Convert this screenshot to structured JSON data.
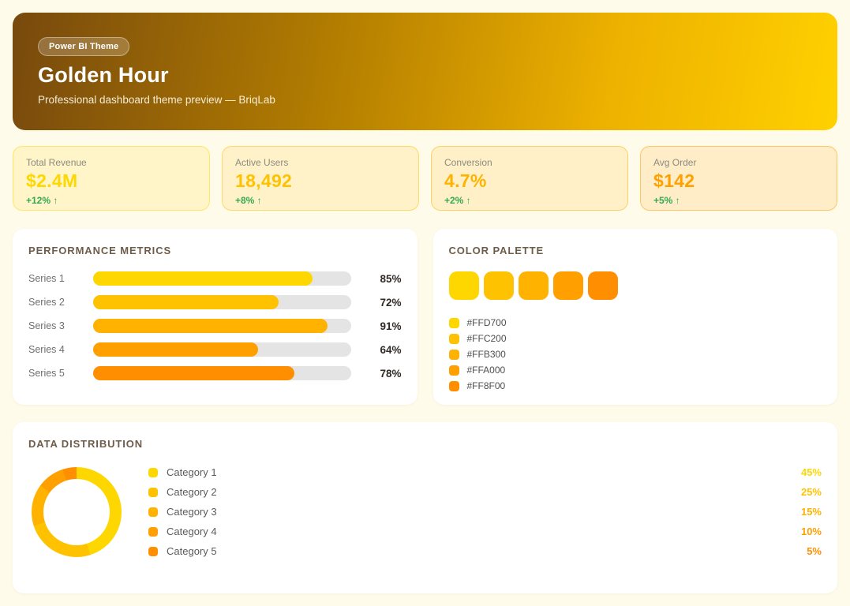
{
  "theme": {
    "page_background": "#FFFBEB",
    "panel_background": "#FFFFFF",
    "panel_title_color": "#6E5C49",
    "positive_color": "#34A853",
    "bar_track_color": "#E4E4E4",
    "header_gradient": [
      "#77490D",
      "#B57F00",
      "#EDB100",
      "#FFD100"
    ]
  },
  "header": {
    "badge": "Power BI Theme",
    "title": "Golden Hour",
    "subtitle": "Professional dashboard theme preview — BriqLab"
  },
  "stat_cards": [
    {
      "label": "Total Revenue",
      "value": "$2.4M",
      "change": "+12% ↑",
      "accent": "#FFD700"
    },
    {
      "label": "Active Users",
      "value": "18,492",
      "change": "+8% ↑",
      "accent": "#FFC200"
    },
    {
      "label": "Conversion",
      "value": "4.7%",
      "change": "+2% ↑",
      "accent": "#FFB300"
    },
    {
      "label": "Avg Order",
      "value": "$142",
      "change": "+5% ↑",
      "accent": "#FFA000"
    }
  ],
  "performance": {
    "title": "PERFORMANCE METRICS",
    "rows": [
      {
        "label": "Series 1",
        "value": 85,
        "display": "85%",
        "color": "#FFD700"
      },
      {
        "label": "Series 2",
        "value": 72,
        "display": "72%",
        "color": "#FFC200"
      },
      {
        "label": "Series 3",
        "value": 91,
        "display": "91%",
        "color": "#FFB300"
      },
      {
        "label": "Series 4",
        "value": 64,
        "display": "64%",
        "color": "#FFA000"
      },
      {
        "label": "Series 5",
        "value": 78,
        "display": "78%",
        "color": "#FF8F00"
      }
    ]
  },
  "palette": {
    "title": "COLOR PALETTE",
    "colors": [
      "#FFD700",
      "#FFC200",
      "#FFB300",
      "#FFA000",
      "#FF8F00"
    ]
  },
  "distribution": {
    "title": "DATA DISTRIBUTION",
    "items": [
      {
        "label": "Category 1",
        "pct": 45,
        "display": "45%",
        "color": "#FFD700"
      },
      {
        "label": "Category 2",
        "pct": 25,
        "display": "25%",
        "color": "#FFC200"
      },
      {
        "label": "Category 3",
        "pct": 15,
        "display": "15%",
        "color": "#FFB300"
      },
      {
        "label": "Category 4",
        "pct": 10,
        "display": "10%",
        "color": "#FFA000"
      },
      {
        "label": "Category 5",
        "pct": 5,
        "display": "5%",
        "color": "#FF8F00"
      }
    ]
  },
  "chart_data": [
    {
      "type": "bar",
      "orientation": "horizontal",
      "title": "PERFORMANCE METRICS",
      "categories": [
        "Series 1",
        "Series 2",
        "Series 3",
        "Series 4",
        "Series 5"
      ],
      "values": [
        85,
        72,
        91,
        64,
        78
      ],
      "unit": "%",
      "xlim": [
        0,
        100
      ],
      "grid": false,
      "colors": [
        "#FFD700",
        "#FFC200",
        "#FFB300",
        "#FFA000",
        "#FF8F00"
      ]
    },
    {
      "type": "pie",
      "subtype": "donut",
      "title": "DATA DISTRIBUTION",
      "categories": [
        "Category 1",
        "Category 2",
        "Category 3",
        "Category 4",
        "Category 5"
      ],
      "values": [
        45,
        25,
        15,
        10,
        5
      ],
      "unit": "%",
      "start_angle_deg": 0,
      "direction": "clockwise",
      "legend_position": "right",
      "colors": [
        "#FFD700",
        "#FFC200",
        "#FFB300",
        "#FFA000",
        "#FF8F00"
      ]
    }
  ]
}
